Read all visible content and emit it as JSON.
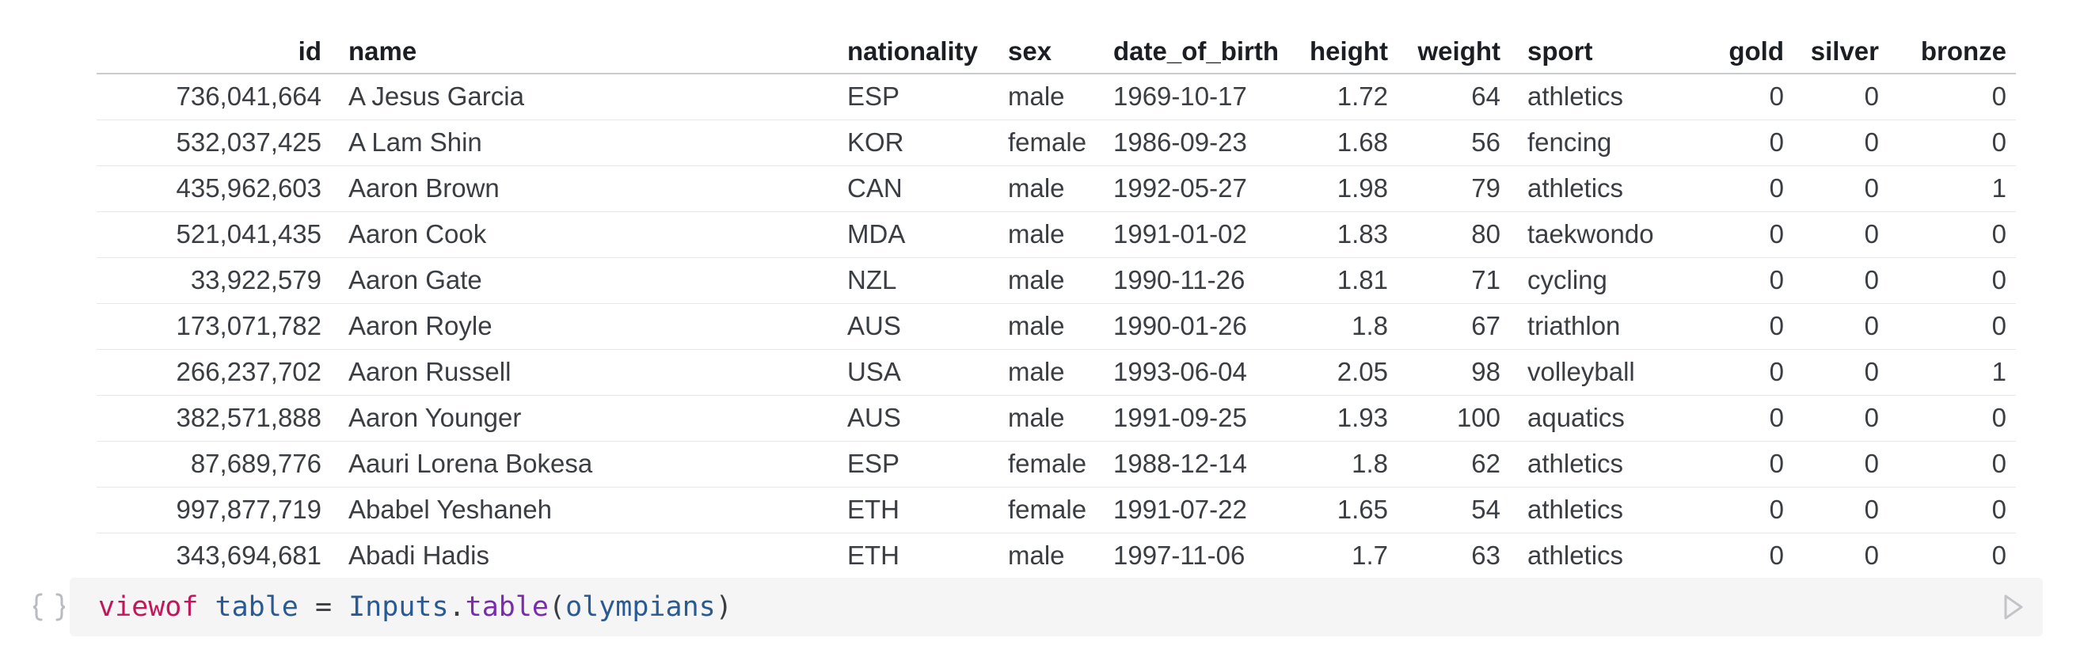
{
  "table": {
    "columns": [
      {
        "key": "id",
        "label": "id",
        "align": "num"
      },
      {
        "key": "name",
        "label": "name",
        "align": "txt"
      },
      {
        "key": "nationality",
        "label": "nationality",
        "align": "txt"
      },
      {
        "key": "sex",
        "label": "sex",
        "align": "txt"
      },
      {
        "key": "date_of_birth",
        "label": "date_of_birth",
        "align": "txt"
      },
      {
        "key": "height",
        "label": "height",
        "align": "num"
      },
      {
        "key": "weight",
        "label": "weight",
        "align": "num"
      },
      {
        "key": "sport",
        "label": "sport",
        "align": "txt"
      },
      {
        "key": "gold",
        "label": "gold",
        "align": "num"
      },
      {
        "key": "silver",
        "label": "silver",
        "align": "num"
      },
      {
        "key": "bronze",
        "label": "bronze",
        "align": "num"
      }
    ],
    "rows": [
      [
        "736,041,664",
        "A Jesus Garcia",
        "ESP",
        "male",
        "1969-10-17",
        "1.72",
        "64",
        "athletics",
        "0",
        "0",
        "0"
      ],
      [
        "532,037,425",
        "A Lam Shin",
        "KOR",
        "female",
        "1986-09-23",
        "1.68",
        "56",
        "fencing",
        "0",
        "0",
        "0"
      ],
      [
        "435,962,603",
        "Aaron Brown",
        "CAN",
        "male",
        "1992-05-27",
        "1.98",
        "79",
        "athletics",
        "0",
        "0",
        "1"
      ],
      [
        "521,041,435",
        "Aaron Cook",
        "MDA",
        "male",
        "1991-01-02",
        "1.83",
        "80",
        "taekwondo",
        "0",
        "0",
        "0"
      ],
      [
        "33,922,579",
        "Aaron Gate",
        "NZL",
        "male",
        "1990-11-26",
        "1.81",
        "71",
        "cycling",
        "0",
        "0",
        "0"
      ],
      [
        "173,071,782",
        "Aaron Royle",
        "AUS",
        "male",
        "1990-01-26",
        "1.8",
        "67",
        "triathlon",
        "0",
        "0",
        "0"
      ],
      [
        "266,237,702",
        "Aaron Russell",
        "USA",
        "male",
        "1993-06-04",
        "2.05",
        "98",
        "volleyball",
        "0",
        "0",
        "1"
      ],
      [
        "382,571,888",
        "Aaron Younger",
        "AUS",
        "male",
        "1991-09-25",
        "1.93",
        "100",
        "aquatics",
        "0",
        "0",
        "0"
      ],
      [
        "87,689,776",
        "Aauri Lorena Bokesa",
        "ESP",
        "female",
        "1988-12-14",
        "1.8",
        "62",
        "athletics",
        "0",
        "0",
        "0"
      ],
      [
        "997,877,719",
        "Ababel Yeshaneh",
        "ETH",
        "female",
        "1991-07-22",
        "1.65",
        "54",
        "athletics",
        "0",
        "0",
        "0"
      ],
      [
        "343,694,681",
        "Abadi Hadis",
        "ETH",
        "male",
        "1997-11-06",
        "1.7",
        "63",
        "athletics",
        "0",
        "0",
        "0"
      ]
    ]
  },
  "cell": {
    "code": {
      "keyword": "viewof",
      "variable": "table",
      "operator": "=",
      "object": "Inputs",
      "dot": ".",
      "method": "table",
      "open_paren": "(",
      "argument": "olympians",
      "close_paren": ")"
    },
    "left_icon": "braces-icon",
    "right_icon": "run-icon"
  },
  "colors": {
    "keyword": "#c2185b",
    "variable": "#2a5a94",
    "method": "#7a2cae",
    "cell_background": "#f5f5f5"
  }
}
